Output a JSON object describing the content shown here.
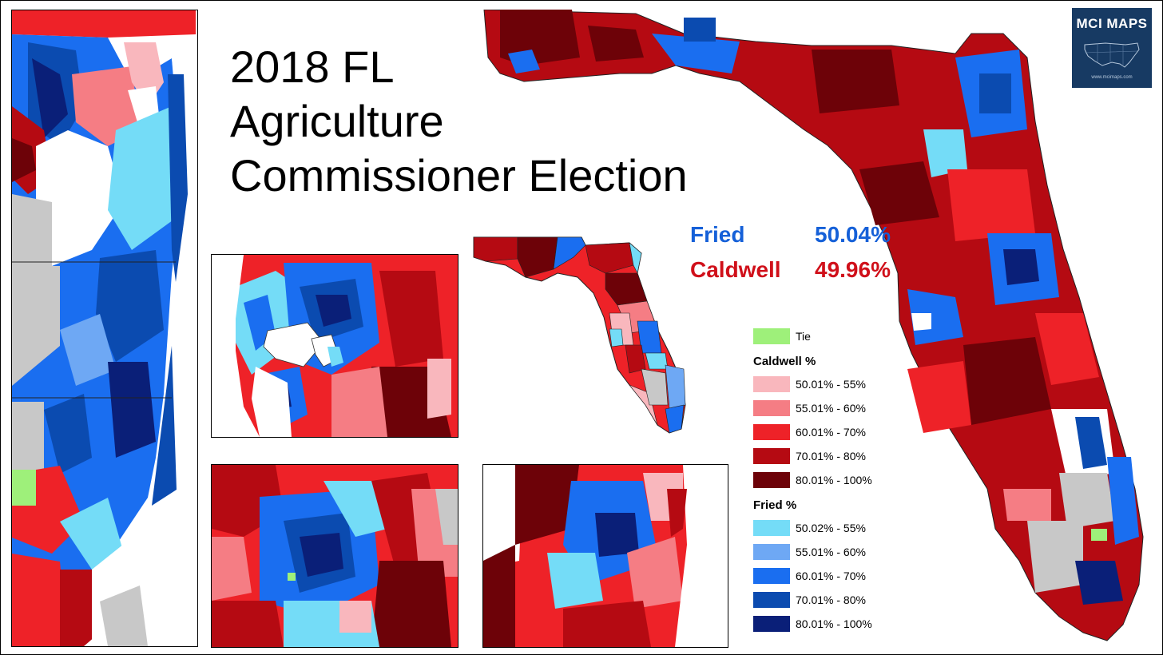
{
  "title": {
    "line1": "2018 FL",
    "line2": "Agriculture",
    "line3": "Commissioner Election"
  },
  "results": {
    "fried": {
      "name": "Fried",
      "pct": "50.04%",
      "color": "#1560d8"
    },
    "caldwell": {
      "name": "Caldwell",
      "pct": "49.96%",
      "color": "#d0101a"
    }
  },
  "legend": {
    "tie": {
      "label": "Tie",
      "color": "#9ef07a"
    },
    "caldwell_heading": "Caldwell  %",
    "caldwell": [
      {
        "label": "50.01% - 55%",
        "color": "#f9b7bd"
      },
      {
        "label": "55.01% - 60%",
        "color": "#f57d84"
      },
      {
        "label": "60.01% - 70%",
        "color": "#ee2228"
      },
      {
        "label": "70.01% - 80%",
        "color": "#b50a12"
      },
      {
        "label": "80.01% - 100%",
        "color": "#6d0208"
      }
    ],
    "fried_heading": "Fried  %",
    "fried": [
      {
        "label": "50.02% - 55%",
        "color": "#74dcf7"
      },
      {
        "label": "55.01% - 60%",
        "color": "#6ea8f4"
      },
      {
        "label": "60.01% - 70%",
        "color": "#1a6ef0"
      },
      {
        "label": "70.01% - 80%",
        "color": "#0b4bb0"
      },
      {
        "label": "80.01% - 100%",
        "color": "#0a1f78"
      }
    ],
    "no_data_color": "#c8c8c8"
  },
  "logo": {
    "brand": "MCI MAPS",
    "url": "www.mcimaps.com",
    "bg": "#173a63"
  }
}
